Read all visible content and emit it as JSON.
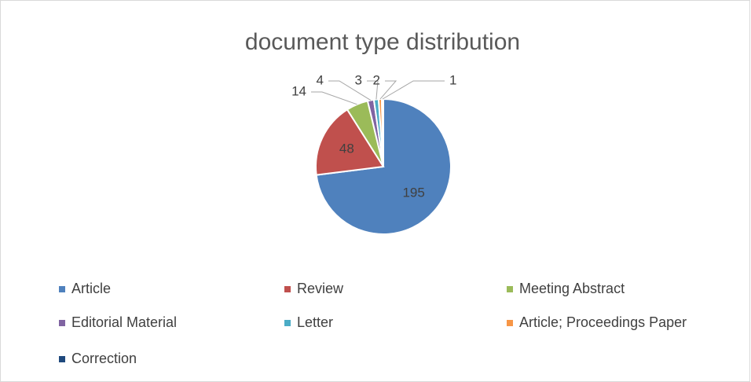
{
  "chart_data": {
    "type": "pie",
    "title": "document type distribution",
    "categories": [
      "Article",
      "Review",
      "Meeting Abstract",
      "Editorial Material",
      "Letter",
      "Article; Proceedings Paper",
      "Correction"
    ],
    "values": [
      195,
      48,
      14,
      4,
      3,
      2,
      1
    ],
    "colors": [
      "#4f81bd",
      "#c0504d",
      "#9bbb59",
      "#8064a2",
      "#4bacc6",
      "#f79646",
      "#1f497d"
    ],
    "legend": "bottom"
  }
}
